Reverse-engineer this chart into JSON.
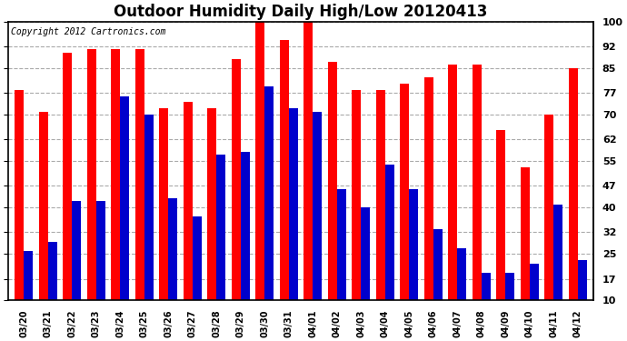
{
  "title": "Outdoor Humidity Daily High/Low 20120413",
  "copyright": "Copyright 2012 Cartronics.com",
  "categories": [
    "03/20",
    "03/21",
    "03/22",
    "03/23",
    "03/24",
    "03/25",
    "03/26",
    "03/27",
    "03/28",
    "03/29",
    "03/30",
    "03/31",
    "04/01",
    "04/02",
    "04/03",
    "04/04",
    "04/05",
    "04/06",
    "04/07",
    "04/08",
    "04/09",
    "04/10",
    "04/11",
    "04/12"
  ],
  "high_values": [
    78,
    71,
    90,
    91,
    91,
    91,
    72,
    74,
    72,
    88,
    100,
    94,
    100,
    87,
    78,
    78,
    80,
    82,
    86,
    86,
    65,
    53,
    70,
    85
  ],
  "low_values": [
    26,
    29,
    42,
    42,
    76,
    70,
    43,
    37,
    57,
    58,
    79,
    72,
    71,
    46,
    40,
    54,
    46,
    33,
    27,
    19,
    19,
    22,
    41,
    23
  ],
  "high_color": "#ff0000",
  "low_color": "#0000cc",
  "background_color": "#ffffff",
  "plot_bg_color": "#ffffff",
  "grid_color": "#aaaaaa",
  "yticks": [
    10,
    17,
    25,
    32,
    40,
    47,
    55,
    62,
    70,
    77,
    85,
    92,
    100
  ],
  "ylim": [
    10,
    100
  ],
  "bar_width": 0.38,
  "title_fontsize": 12,
  "copyright_fontsize": 7,
  "tick_fontsize": 8,
  "xtick_fontsize": 7
}
